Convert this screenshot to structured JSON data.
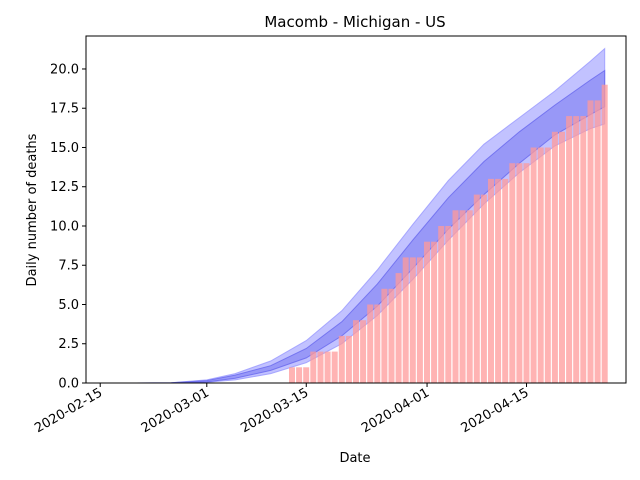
{
  "chart_data": {
    "type": "bar",
    "title": "Macomb - Michigan - US",
    "xlabel": "Date",
    "ylabel": "Daily number of deaths",
    "xlim": [
      "2020-02-13",
      "2020-04-29"
    ],
    "ylim": [
      0,
      22.1
    ],
    "x_ticks": [
      "2020-02-15",
      "2020-03-01",
      "2020-03-15",
      "2020-04-01",
      "2020-04-15"
    ],
    "y_ticks": [
      "0.0",
      "2.5",
      "5.0",
      "7.5",
      "10.0",
      "12.5",
      "15.0",
      "17.5",
      "20.0"
    ],
    "grid": false,
    "colors": {
      "bars": "#ff9999",
      "band_outer": "#9999ff",
      "band_inner": "#6666ee"
    },
    "bars": {
      "dates": [
        "2020-03-13",
        "2020-03-14",
        "2020-03-15",
        "2020-03-16",
        "2020-03-17",
        "2020-03-18",
        "2020-03-19",
        "2020-03-20",
        "2020-03-21",
        "2020-03-22",
        "2020-03-23",
        "2020-03-24",
        "2020-03-25",
        "2020-03-26",
        "2020-03-27",
        "2020-03-28",
        "2020-03-29",
        "2020-03-30",
        "2020-03-31",
        "2020-04-01",
        "2020-04-02",
        "2020-04-03",
        "2020-04-04",
        "2020-04-05",
        "2020-04-06",
        "2020-04-07",
        "2020-04-08",
        "2020-04-09",
        "2020-04-10",
        "2020-04-11",
        "2020-04-12",
        "2020-04-13",
        "2020-04-14",
        "2020-04-15",
        "2020-04-16",
        "2020-04-17",
        "2020-04-18",
        "2020-04-19",
        "2020-04-20",
        "2020-04-21",
        "2020-04-22",
        "2020-04-23",
        "2020-04-24",
        "2020-04-25",
        "2020-04-26"
      ],
      "values": [
        1,
        1,
        1,
        2,
        2,
        2,
        2,
        3,
        3,
        4,
        4,
        5,
        5,
        6,
        6,
        7,
        8,
        8,
        8,
        9,
        9,
        10,
        10,
        11,
        11,
        11,
        12,
        12,
        13,
        13,
        13,
        14,
        14,
        14,
        15,
        15,
        15,
        16,
        16,
        17,
        17,
        17,
        18,
        18,
        19
      ]
    },
    "band_outer": {
      "dates": [
        "2020-02-20",
        "2020-02-25",
        "2020-03-01",
        "2020-03-05",
        "2020-03-10",
        "2020-03-15",
        "2020-03-20",
        "2020-03-25",
        "2020-03-30",
        "2020-04-04",
        "2020-04-09",
        "2020-04-14",
        "2020-04-19",
        "2020-04-24",
        "2020-04-26"
      ],
      "low": [
        0,
        0,
        0.05,
        0.2,
        0.6,
        1.3,
        2.5,
        4.3,
        6.6,
        9.1,
        11.4,
        13.4,
        15.1,
        16.2,
        16.5
      ],
      "high": [
        0,
        0.02,
        0.2,
        0.6,
        1.4,
        2.7,
        4.6,
        7.2,
        10.1,
        12.9,
        15.2,
        16.9,
        18.6,
        20.5,
        21.3
      ]
    },
    "band_inner": {
      "dates": [
        "2020-02-20",
        "2020-02-25",
        "2020-03-01",
        "2020-03-05",
        "2020-03-10",
        "2020-03-15",
        "2020-03-20",
        "2020-03-25",
        "2020-03-30",
        "2020-04-04",
        "2020-04-09",
        "2020-04-14",
        "2020-04-19",
        "2020-04-24",
        "2020-04-26"
      ],
      "low": [
        0,
        0,
        0.07,
        0.3,
        0.8,
        1.6,
        3.0,
        4.9,
        7.3,
        9.8,
        12.0,
        14.0,
        15.8,
        17.1,
        17.6
      ],
      "high": [
        0,
        0.01,
        0.15,
        0.5,
        1.1,
        2.2,
        3.9,
        6.3,
        9.1,
        11.8,
        14.1,
        16.0,
        17.7,
        19.3,
        19.9
      ]
    }
  }
}
